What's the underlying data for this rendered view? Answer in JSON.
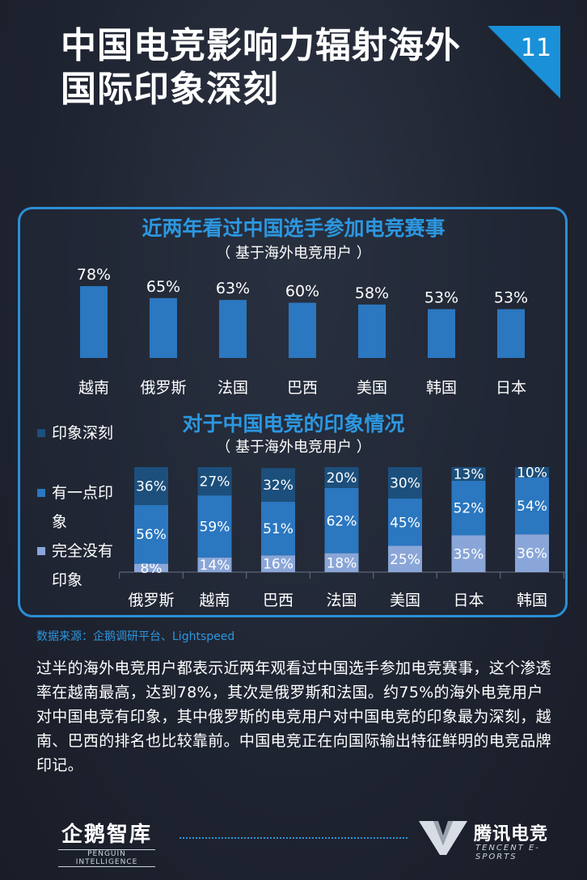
{
  "page": {
    "title": "中国电竞影响力辐射海外国际印象深刻",
    "page_number": "11"
  },
  "chart_data": [
    {
      "type": "bar",
      "title": "近两年看过中国选手参加电竞赛事",
      "subtitle": "（ 基于海外电竞用户 ）",
      "categories": [
        "越南",
        "俄罗斯",
        "法国",
        "巴西",
        "美国",
        "韩国",
        "日本"
      ],
      "values": [
        78,
        65,
        63,
        60,
        58,
        53,
        53
      ],
      "value_labels": [
        "78%",
        "65%",
        "63%",
        "60%",
        "58%",
        "53%",
        "53%"
      ],
      "unit": "%",
      "ylim": [
        0,
        100
      ],
      "color": "#2b77c0"
    },
    {
      "type": "bar",
      "stacked": true,
      "title": "对于中国电竞的印象情况",
      "subtitle": "（ 基于海外电竞用户 ）",
      "categories": [
        "俄罗斯",
        "越南",
        "巴西",
        "法国",
        "美国",
        "日本",
        "韩国"
      ],
      "series": [
        {
          "name": "完全没有印象",
          "values": [
            8,
            14,
            16,
            18,
            25,
            35,
            36
          ],
          "labels": [
            "8%",
            "14%",
            "16%",
            "18%",
            "25%",
            "35%",
            "36%"
          ],
          "color": "#8aa6d8"
        },
        {
          "name": "有一点印象",
          "values": [
            56,
            59,
            51,
            62,
            45,
            52,
            54
          ],
          "labels": [
            "56%",
            "59%",
            "51%",
            "62%",
            "45%",
            "52%",
            "54%"
          ],
          "color": "#2b77c0"
        },
        {
          "name": "印象深刻",
          "values": [
            36,
            27,
            32,
            20,
            30,
            13,
            10
          ],
          "labels": [
            "36%",
            "27%",
            "32%",
            "20%",
            "30%",
            "13%",
            "10%"
          ],
          "color": "#1c4f7c"
        }
      ],
      "legend": [
        "印象深刻",
        "有一点印象",
        "完全没有印象"
      ],
      "legend_position": "left",
      "unit": "%"
    }
  ],
  "source": "数据来源：企鹅调研平台、Lightspeed",
  "body_text": "过半的海外电竞用户都表示近两年观看过中国选手参加电竞赛事，这个渗透率在越南最高，达到78%，其次是俄罗斯和法国。约75%的海外电竞用户对中国电竞有印象，其中俄罗斯的电竞用户对中国电竞的印象最为深刻，越南、巴西的排名也比较靠前。中国电竞正在向国际输出特征鲜明的电竞品牌印记。",
  "footer": {
    "logo_left": "企鹅智库",
    "logo_left_sub": "PENGUIN INTELLIGENCE",
    "logo_right": "腾讯电竞",
    "logo_right_sub": "TENCENT E-SPORTS"
  }
}
